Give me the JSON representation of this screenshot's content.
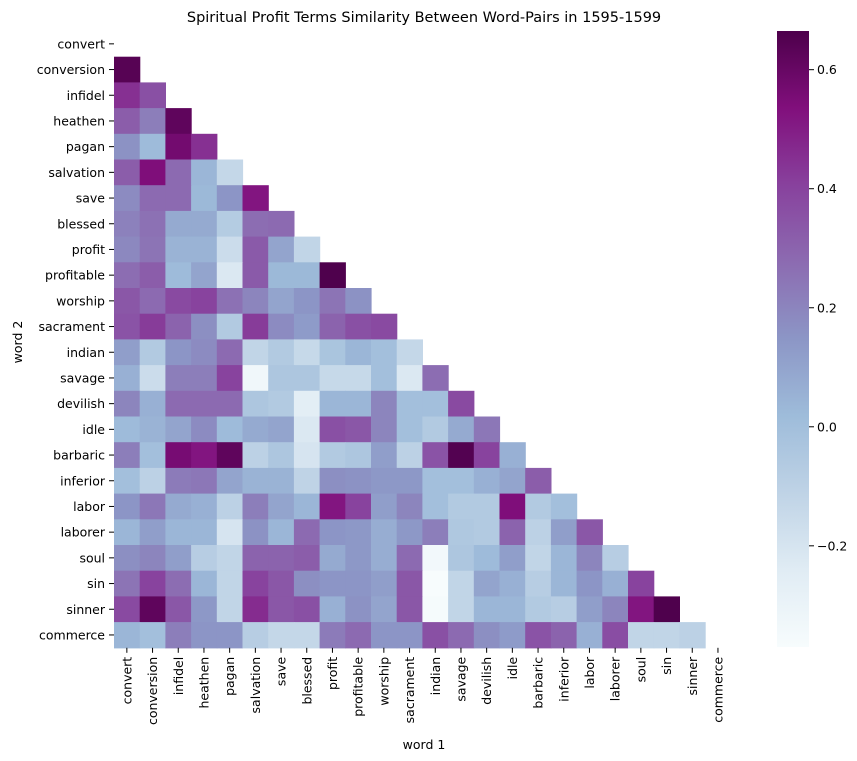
{
  "chart_data": {
    "type": "heatmap",
    "title": "Spiritual Profit Terms Similarity Between Word-Pairs in 1595-1599",
    "xlabel": "word 1",
    "ylabel": "word 2",
    "mask": "upper-triangle-including-diagonal",
    "colormap": "BuPu",
    "colormap_stops": [
      "#f7fcfd",
      "#e0ecf4",
      "#bfd3e6",
      "#9ebcda",
      "#8c96c6",
      "#8c6bb1",
      "#88419d",
      "#810f7c",
      "#4d004b"
    ],
    "vmin": -0.37,
    "vmax": 0.665,
    "colorbar_ticks": [
      -0.2,
      0.0,
      0.2,
      0.4,
      0.6
    ],
    "colorbar_tick_labels": [
      "−0.2",
      "0.0",
      "0.2",
      "0.4",
      "0.6"
    ],
    "labels": [
      "convert",
      "conversion",
      "infidel",
      "heathen",
      "pagan",
      "salvation",
      "save",
      "blessed",
      "profit",
      "profitable",
      "worship",
      "sacrament",
      "indian",
      "savage",
      "devilish",
      "idle",
      "barbaric",
      "inferior",
      "labor",
      "laborer",
      "soul",
      "sin",
      "sinner",
      "commerce"
    ],
    "rows": [
      [],
      [
        0.64
      ],
      [
        0.45,
        0.36
      ],
      [
        0.32,
        0.22,
        0.62
      ],
      [
        0.16,
        0.02,
        0.57,
        0.45
      ],
      [
        0.32,
        0.54,
        0.28,
        0.04,
        -0.13
      ],
      [
        0.18,
        0.28,
        0.28,
        0.03,
        0.15,
        0.52
      ],
      [
        0.21,
        0.26,
        0.08,
        0.08,
        -0.07,
        0.27,
        0.28
      ],
      [
        0.19,
        0.25,
        0.05,
        0.05,
        -0.16,
        0.33,
        0.1,
        -0.12
      ],
      [
        0.27,
        0.32,
        0.02,
        0.1,
        -0.22,
        0.33,
        0.03,
        0.03,
        0.66
      ],
      [
        0.34,
        0.28,
        0.38,
        0.4,
        0.26,
        0.2,
        0.1,
        0.15,
        0.25,
        0.16
      ],
      [
        0.35,
        0.42,
        0.3,
        0.17,
        -0.06,
        0.42,
        0.18,
        0.13,
        0.3,
        0.36,
        0.38
      ],
      [
        0.12,
        -0.06,
        0.15,
        0.18,
        0.28,
        -0.12,
        -0.06,
        -0.14,
        -0.03,
        0.04,
        0.0,
        -0.13
      ],
      [
        0.06,
        -0.16,
        0.22,
        0.22,
        0.4,
        -0.33,
        -0.04,
        -0.04,
        -0.14,
        -0.14,
        0.0,
        -0.22,
        0.27
      ],
      [
        0.2,
        0.06,
        0.28,
        0.28,
        0.28,
        -0.04,
        -0.06,
        -0.26,
        0.04,
        0.04,
        0.2,
        0.0,
        0.0,
        0.38
      ],
      [
        0.02,
        0.05,
        0.1,
        0.18,
        0.02,
        0.08,
        0.1,
        -0.22,
        0.36,
        0.34,
        0.2,
        0.0,
        -0.06,
        0.08,
        0.24
      ],
      [
        0.22,
        0.0,
        0.56,
        0.52,
        0.62,
        -0.1,
        -0.04,
        -0.2,
        -0.06,
        -0.04,
        0.12,
        -0.1,
        0.35,
        0.65,
        0.4,
        0.06
      ],
      [
        0.0,
        -0.1,
        0.23,
        0.24,
        0.1,
        0.05,
        0.05,
        -0.11,
        0.17,
        0.16,
        0.14,
        0.14,
        0.0,
        0.0,
        0.06,
        0.1,
        0.32
      ],
      [
        0.15,
        0.24,
        0.08,
        0.06,
        -0.1,
        0.22,
        0.1,
        0.04,
        0.52,
        0.4,
        0.12,
        0.2,
        0.0,
        -0.06,
        -0.06,
        0.54,
        -0.06,
        0.0
      ],
      [
        0.04,
        0.12,
        0.04,
        0.04,
        -0.2,
        0.16,
        0.04,
        0.28,
        0.15,
        0.14,
        0.07,
        0.14,
        0.22,
        -0.05,
        -0.06,
        0.3,
        -0.1,
        0.12,
        0.34
      ],
      [
        0.17,
        0.2,
        0.12,
        -0.08,
        -0.12,
        0.3,
        0.3,
        0.32,
        0.08,
        0.14,
        0.07,
        0.28,
        -0.34,
        -0.04,
        0.02,
        0.12,
        -0.12,
        0.04,
        0.2,
        -0.08
      ],
      [
        0.25,
        0.4,
        0.27,
        0.04,
        -0.12,
        0.4,
        0.34,
        0.17,
        0.15,
        0.15,
        0.12,
        0.34,
        -0.37,
        -0.12,
        0.1,
        0.06,
        -0.08,
        0.04,
        0.15,
        0.06,
        0.4
      ],
      [
        0.38,
        0.62,
        0.34,
        0.14,
        -0.12,
        0.46,
        0.34,
        0.36,
        0.06,
        0.16,
        0.1,
        0.34,
        -0.36,
        -0.12,
        0.04,
        0.04,
        -0.06,
        -0.08,
        0.12,
        0.2,
        0.52,
        0.66
      ],
      [
        0.04,
        0.0,
        0.22,
        0.15,
        0.15,
        -0.08,
        -0.13,
        -0.13,
        0.23,
        0.28,
        0.15,
        0.15,
        0.36,
        0.28,
        0.17,
        0.13,
        0.35,
        0.3,
        0.06,
        0.37,
        -0.12,
        -0.12,
        -0.1
      ]
    ]
  }
}
